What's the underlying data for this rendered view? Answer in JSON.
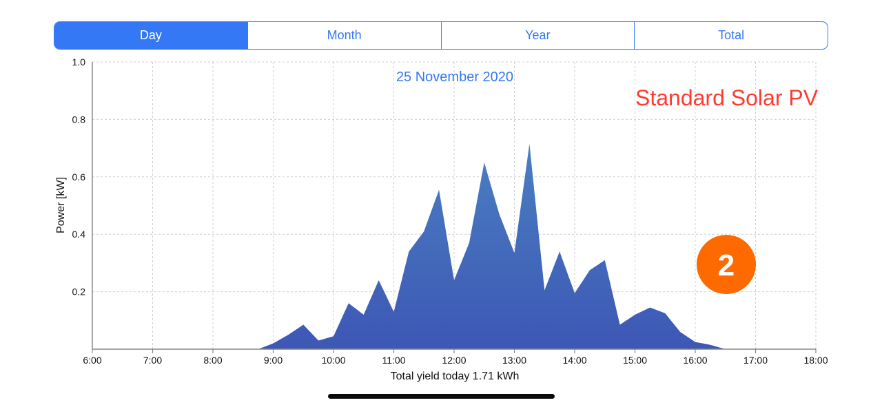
{
  "tabs": [
    {
      "label": "Day",
      "active": true
    },
    {
      "label": "Month",
      "active": false
    },
    {
      "label": "Year",
      "active": false
    },
    {
      "label": "Total",
      "active": false
    }
  ],
  "annotation": {
    "label": "Standard Solar PV",
    "label_color": "#ff3b30",
    "badge": "2",
    "badge_color": "#ff6a00"
  },
  "chart_data": {
    "type": "area",
    "title": "25 November 2020",
    "xlabel": "Total yield today 1.71 kWh",
    "ylabel": "Power [kW]",
    "xlim": [
      "6:00",
      "18:00"
    ],
    "ylim": [
      0,
      1.0
    ],
    "x_ticks": [
      "6:00",
      "7:00",
      "8:00",
      "9:00",
      "10:00",
      "11:00",
      "12:00",
      "13:00",
      "14:00",
      "15:00",
      "16:00",
      "17:00",
      "18:00"
    ],
    "y_ticks": [
      "0.2",
      "0.4",
      "0.6",
      "0.8",
      "1.0"
    ],
    "grid": true,
    "fill_color_top": "#4a7fc1",
    "fill_color_bottom": "#3d57b5",
    "series": [
      {
        "points": [
          {
            "x": "8:45",
            "y": 0.0
          },
          {
            "x": "9:00",
            "y": 0.02
          },
          {
            "x": "9:15",
            "y": 0.05
          },
          {
            "x": "9:30",
            "y": 0.085
          },
          {
            "x": "9:45",
            "y": 0.03
          },
          {
            "x": "10:00",
            "y": 0.045
          },
          {
            "x": "10:15",
            "y": 0.16
          },
          {
            "x": "10:30",
            "y": 0.12
          },
          {
            "x": "10:45",
            "y": 0.24
          },
          {
            "x": "11:00",
            "y": 0.13
          },
          {
            "x": "11:15",
            "y": 0.34
          },
          {
            "x": "11:30",
            "y": 0.41
          },
          {
            "x": "11:45",
            "y": 0.555
          },
          {
            "x": "12:00",
            "y": 0.24
          },
          {
            "x": "12:15",
            "y": 0.37
          },
          {
            "x": "12:30",
            "y": 0.65
          },
          {
            "x": "12:45",
            "y": 0.47
          },
          {
            "x": "13:00",
            "y": 0.335
          },
          {
            "x": "13:15",
            "y": 0.715
          },
          {
            "x": "13:30",
            "y": 0.205
          },
          {
            "x": "13:45",
            "y": 0.34
          },
          {
            "x": "14:00",
            "y": 0.195
          },
          {
            "x": "14:15",
            "y": 0.275
          },
          {
            "x": "14:30",
            "y": 0.31
          },
          {
            "x": "14:45",
            "y": 0.085
          },
          {
            "x": "15:00",
            "y": 0.12
          },
          {
            "x": "15:15",
            "y": 0.145
          },
          {
            "x": "15:30",
            "y": 0.125
          },
          {
            "x": "15:45",
            "y": 0.06
          },
          {
            "x": "16:00",
            "y": 0.025
          },
          {
            "x": "16:15",
            "y": 0.015
          },
          {
            "x": "16:30",
            "y": 0.0
          }
        ]
      }
    ]
  }
}
